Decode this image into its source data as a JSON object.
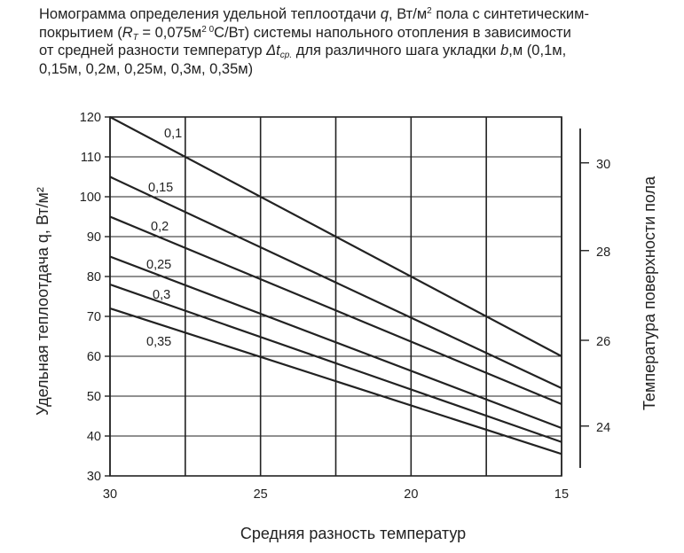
{
  "title": {
    "line1_a": "Номограмма определения удельной теплоотдачи ",
    "line1_q": "q",
    "line1_b": ", Вт/м",
    "line1_sup": "2",
    "line1_c": " пола с синтетическим-",
    "line2_a": "покрытием (",
    "line2_r": "R",
    "line2_rsub": "T",
    "line2_b": " = 0,075м",
    "line2_sup": "2 0",
    "line2_c": "С/Вт) системы напольного отопления в зависимости",
    "line3_a": "от средней разности температур  ",
    "line3_dt": "Δt",
    "line3_sub": "ср.",
    "line3_b": "  для различного шага укладки  ",
    "line3_bvar": "b",
    "line3_c": ",м (0,1м,",
    "line4": "0,15м, 0,2м, 0,25м, 0,3м, 0,35м)"
  },
  "chart_data": {
    "type": "line",
    "xlabel": "Средняя разность температур",
    "ylabel": "Удельная теплоотдача q, Вт/м²",
    "xlim": [
      30,
      15
    ],
    "ylim": [
      30,
      120
    ],
    "x_ticks": [
      30,
      25,
      20,
      15
    ],
    "x_gridlines": [
      30,
      27.5,
      25,
      22.5,
      20,
      17.5,
      15
    ],
    "y_ticks": [
      30,
      40,
      50,
      60,
      70,
      80,
      90,
      100,
      110,
      120
    ],
    "grid": true,
    "series": [
      {
        "name": "0,1",
        "x": [
          30,
          15
        ],
        "y": [
          120,
          60
        ]
      },
      {
        "name": "0,15",
        "x": [
          30,
          15
        ],
        "y": [
          105,
          52
        ]
      },
      {
        "name": "0,2",
        "x": [
          30,
          15
        ],
        "y": [
          95,
          48
        ]
      },
      {
        "name": "0,25",
        "x": [
          30,
          15
        ],
        "y": [
          85,
          42
        ]
      },
      {
        "name": "0,3",
        "x": [
          30,
          15
        ],
        "y": [
          78,
          38.5
        ]
      },
      {
        "name": "0,35",
        "x": [
          30,
          15
        ],
        "y": [
          72,
          35.5
        ]
      }
    ],
    "secondary_axis": {
      "label": "Температура поверхности пола",
      "ticks": [
        30,
        28,
        26,
        24
      ],
      "q_at_tick": [
        108.5,
        86.5,
        64,
        42.5
      ]
    },
    "colors": {
      "line": "#222222",
      "grid": "#222222"
    }
  }
}
